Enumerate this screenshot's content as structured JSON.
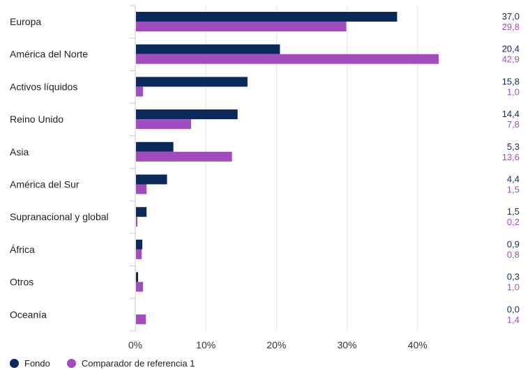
{
  "chart_data": {
    "type": "bar",
    "orientation": "horizontal",
    "categories": [
      "Europa",
      "América del Norte",
      "Activos líquidos",
      "Reino Unido",
      "Asia",
      "América del Sur",
      "Supranacional y global",
      "África",
      "Otros",
      "Oceanía"
    ],
    "series": [
      {
        "name": "Fondo",
        "color": "#0b2a5b",
        "values": [
          37.0,
          20.4,
          15.8,
          14.4,
          5.3,
          4.4,
          1.5,
          0.9,
          0.3,
          0.0
        ]
      },
      {
        "name": "Comparador de referencia 1",
        "color": "#a24bbf",
        "values": [
          29.8,
          42.9,
          1.0,
          7.8,
          13.6,
          1.5,
          0.2,
          0.8,
          1.0,
          1.4
        ]
      }
    ],
    "value_labels": [
      [
        "37,0",
        "20,4",
        "15,8",
        "14,4",
        "5,3",
        "4,4",
        "1,5",
        "0,9",
        "0,3",
        "0,0"
      ],
      [
        "29,8",
        "42,9",
        "1,0",
        "7,8",
        "13,6",
        "1,5",
        "0,2",
        "0,8",
        "1,0",
        "1,4"
      ]
    ],
    "x_ticks": [
      0,
      10,
      20,
      30,
      40
    ],
    "x_tick_labels": [
      "0%",
      "10%",
      "20%",
      "30%",
      "40%"
    ],
    "xlim": [
      0,
      50
    ],
    "grid": true,
    "legend_position": "bottom-left"
  }
}
